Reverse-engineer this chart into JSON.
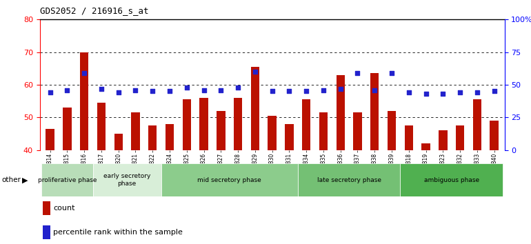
{
  "title": "GDS2052 / 216916_s_at",
  "samples": [
    "GSM109814",
    "GSM109815",
    "GSM109816",
    "GSM109817",
    "GSM109820",
    "GSM109821",
    "GSM109822",
    "GSM109824",
    "GSM109825",
    "GSM109826",
    "GSM109827",
    "GSM109828",
    "GSM109829",
    "GSM109830",
    "GSM109831",
    "GSM109834",
    "GSM109835",
    "GSM109836",
    "GSM109837",
    "GSM109838",
    "GSM109839",
    "GSM109818",
    "GSM109819",
    "GSM109823",
    "GSM109832",
    "GSM109833",
    "GSM109840"
  ],
  "counts": [
    46.5,
    53.0,
    70.0,
    54.5,
    45.0,
    51.5,
    47.5,
    48.0,
    55.5,
    56.0,
    52.0,
    56.0,
    65.5,
    50.5,
    48.0,
    55.5,
    51.5,
    63.0,
    51.5,
    63.5,
    52.0,
    47.5,
    42.0,
    46.0,
    47.5,
    55.5,
    49.0
  ],
  "percentiles_pct": [
    44,
    46,
    59,
    47,
    44,
    46,
    45,
    45,
    48,
    46,
    46,
    48,
    60,
    45,
    45,
    45,
    46,
    47,
    59,
    46,
    59,
    44,
    43,
    43,
    44,
    44,
    45
  ],
  "phases": [
    {
      "name": "proliferative phase",
      "start": 0,
      "end": 3,
      "color": "#b8ddb8"
    },
    {
      "name": "early secretory\nphase",
      "start": 3,
      "end": 7,
      "color": "#d8eed8"
    },
    {
      "name": "mid secretory phase",
      "start": 7,
      "end": 15,
      "color": "#8ccc8c"
    },
    {
      "name": "late secretory phase",
      "start": 15,
      "end": 21,
      "color": "#74c074"
    },
    {
      "name": "ambiguous phase",
      "start": 21,
      "end": 27,
      "color": "#50b050"
    }
  ],
  "bar_color": "#bb1100",
  "dot_color": "#2222cc",
  "ylim_left": [
    40,
    80
  ],
  "ylim_right": [
    0,
    100
  ],
  "yticks_left": [
    40,
    50,
    60,
    70,
    80
  ],
  "yticks_right": [
    0,
    25,
    50,
    75,
    100
  ],
  "ytick_labels_right": [
    "0",
    "25",
    "50",
    "75",
    "100%"
  ],
  "grid_values": [
    50,
    60,
    70
  ]
}
